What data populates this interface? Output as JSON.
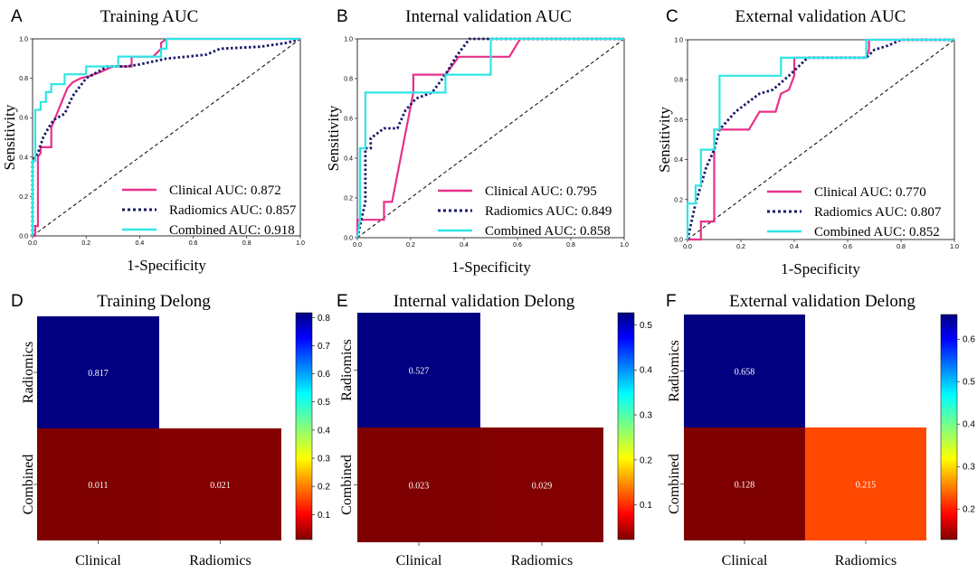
{
  "chart_data": [
    {
      "type": "line",
      "panel": "A",
      "title": "Training AUC",
      "xlabel": "1-Specificity",
      "ylabel": "Sensitivity",
      "xlim": [
        0,
        1
      ],
      "ylim": [
        0,
        1
      ],
      "ticks": [
        "0.0",
        "0.2",
        "0.4",
        "0.6",
        "0.8",
        "1.0"
      ],
      "legend_position": "lower-right",
      "series": [
        {
          "name": "Clinical AUC: 0.872",
          "color": "#e8318a",
          "dash": "solid",
          "x": [
            0,
            0.01,
            0.01,
            0.02,
            0.02,
            0.03,
            0.03,
            0.07,
            0.07,
            0.1,
            0.13,
            0.15,
            0.18,
            0.21,
            0.25,
            0.3,
            0.34,
            0.37,
            0.37,
            0.45,
            0.48,
            0.48,
            0.5,
            1.0
          ],
          "y": [
            0,
            0,
            0.05,
            0.05,
            0.4,
            0.42,
            0.45,
            0.45,
            0.55,
            0.65,
            0.75,
            0.78,
            0.8,
            0.81,
            0.83,
            0.86,
            0.86,
            0.86,
            0.91,
            0.91,
            0.95,
            0.98,
            1.0,
            1.0
          ]
        },
        {
          "name": "Radiomics AUC: 0.857",
          "color": "#1a1a6b",
          "dash": "dotted",
          "x": [
            0,
            0.0,
            0.02,
            0.04,
            0.06,
            0.08,
            0.12,
            0.15,
            0.2,
            0.28,
            0.35,
            0.4,
            0.5,
            0.58,
            0.65,
            0.7,
            0.85,
            0.95,
            1.0
          ],
          "y": [
            0,
            0.38,
            0.42,
            0.5,
            0.55,
            0.59,
            0.62,
            0.71,
            0.8,
            0.86,
            0.86,
            0.87,
            0.9,
            0.91,
            0.92,
            0.95,
            0.96,
            0.98,
            1.0
          ],
          "note": ""
        },
        {
          "name": "Combined AUC: 0.918",
          "color": "#2ee6e6",
          "dash": "solid",
          "x": [
            0,
            0,
            0.01,
            0.01,
            0.03,
            0.03,
            0.05,
            0.05,
            0.07,
            0.07,
            0.12,
            0.12,
            0.2,
            0.2,
            0.32,
            0.32,
            0.48,
            0.48,
            0.5,
            0.5,
            1.0
          ],
          "y": [
            0,
            0.38,
            0.38,
            0.64,
            0.64,
            0.68,
            0.68,
            0.73,
            0.73,
            0.77,
            0.77,
            0.82,
            0.82,
            0.86,
            0.86,
            0.91,
            0.91,
            0.95,
            0.95,
            1.0,
            1.0
          ]
        }
      ]
    },
    {
      "type": "line",
      "panel": "B",
      "title": "Internal validation AUC",
      "xlabel": "1-Specificity",
      "ylabel": "Sensitivity",
      "xlim": [
        0,
        1
      ],
      "ylim": [
        0,
        1
      ],
      "ticks": [
        "0.0",
        "0.2",
        "0.4",
        "0.6",
        "0.8",
        "1.0"
      ],
      "legend_position": "lower-right",
      "series": [
        {
          "name": "Clinical AUC: 0.795",
          "color": "#e8318a",
          "dash": "solid",
          "x": [
            0,
            0,
            0.1,
            0.1,
            0.13,
            0.21,
            0.21,
            0.33,
            0.38,
            0.38,
            0.57,
            0.61,
            0.61,
            1.0
          ],
          "y": [
            0,
            0.09,
            0.09,
            0.18,
            0.18,
            0.73,
            0.82,
            0.82,
            0.91,
            0.91,
            0.91,
            1.0,
            1.0,
            1.0
          ]
        },
        {
          "name": "Radiomics AUC: 0.849",
          "color": "#1a1a6b",
          "dash": "dotted",
          "x": [
            0,
            0.03,
            0.03,
            0.05,
            0.05,
            0.1,
            0.15,
            0.18,
            0.22,
            0.28,
            0.33,
            0.37,
            0.42,
            0.48,
            0.55,
            1.0
          ],
          "y": [
            0,
            0.18,
            0.45,
            0.45,
            0.5,
            0.55,
            0.55,
            0.64,
            0.7,
            0.73,
            0.82,
            0.91,
            1.0,
            1.0,
            1.0,
            1.0
          ]
        },
        {
          "name": "Combined AUC: 0.858",
          "color": "#2ee6e6",
          "dash": "solid",
          "x": [
            0,
            0.01,
            0.01,
            0.03,
            0.03,
            0.05,
            0.05,
            0.33,
            0.33,
            0.38,
            0.38,
            0.5,
            0.5,
            1.0
          ],
          "y": [
            0,
            0.09,
            0.45,
            0.45,
            0.73,
            0.73,
            0.73,
            0.73,
            0.82,
            0.82,
            0.82,
            0.82,
            1.0,
            1.0
          ]
        }
      ]
    },
    {
      "type": "line",
      "panel": "C",
      "title": "External validation AUC",
      "xlabel": "1-Specificity",
      "ylabel": "Sensitivity",
      "xlim": [
        0,
        1
      ],
      "ylim": [
        0,
        1
      ],
      "ticks": [
        "0.0",
        "0.2",
        "0.4",
        "0.6",
        "0.8",
        "1.0"
      ],
      "legend_position": "lower-right",
      "series": [
        {
          "name": "Clinical AUC: 0.770",
          "color": "#e8318a",
          "dash": "solid",
          "x": [
            0,
            0.05,
            0.05,
            0.1,
            0.1,
            0.12,
            0.12,
            0.23,
            0.27,
            0.33,
            0.35,
            0.38,
            0.4,
            0.4,
            0.67,
            0.68,
            0.68,
            1.0
          ],
          "y": [
            0,
            0,
            0.09,
            0.09,
            0.55,
            0.55,
            0.55,
            0.55,
            0.64,
            0.64,
            0.73,
            0.75,
            0.82,
            0.91,
            0.91,
            0.95,
            1.0,
            1.0
          ]
        },
        {
          "name": "Radiomics AUC: 0.807",
          "color": "#1a1a6b",
          "dash": "dotted",
          "x": [
            0,
            0.03,
            0.05,
            0.07,
            0.1,
            0.12,
            0.18,
            0.22,
            0.27,
            0.32,
            0.38,
            0.45,
            0.55,
            0.67,
            0.7,
            0.75,
            0.8,
            1.0
          ],
          "y": [
            0,
            0.18,
            0.27,
            0.36,
            0.45,
            0.55,
            0.64,
            0.68,
            0.73,
            0.75,
            0.82,
            0.91,
            0.91,
            0.91,
            0.95,
            0.97,
            1.0,
            1.0
          ]
        },
        {
          "name": "Combined AUC: 0.852",
          "color": "#2ee6e6",
          "dash": "solid",
          "x": [
            0,
            0,
            0.03,
            0.03,
            0.05,
            0.05,
            0.1,
            0.1,
            0.12,
            0.12,
            0.35,
            0.35,
            0.67,
            0.67,
            1.0
          ],
          "y": [
            0,
            0.18,
            0.18,
            0.27,
            0.27,
            0.45,
            0.45,
            0.55,
            0.55,
            0.82,
            0.82,
            0.91,
            0.91,
            1.0,
            1.0
          ]
        }
      ]
    },
    {
      "type": "heatmap",
      "panel": "D",
      "title": "Training Delong",
      "row_labels": [
        "Radiomics",
        "Combined"
      ],
      "col_labels": [
        "Clinical",
        "Radiomics"
      ],
      "cells": [
        {
          "row": 0,
          "col": 0,
          "value": 0.817,
          "label": "0.817",
          "color": "#000080"
        },
        {
          "row": 1,
          "col": 0,
          "value": 0.011,
          "label": "0.011",
          "color": "#7f0000"
        },
        {
          "row": 1,
          "col": 1,
          "value": 0.021,
          "label": "0.021",
          "color": "#850000"
        }
      ],
      "colormap": "jet",
      "colorbar_range": [
        0.011,
        0.817
      ],
      "colorbar_ticks": [
        "0.1",
        "0.2",
        "0.3",
        "0.4",
        "0.5",
        "0.6",
        "0.7",
        "0.8"
      ]
    },
    {
      "type": "heatmap",
      "panel": "E",
      "title": "Internal validation Delong",
      "row_labels": [
        "Radiomics",
        "Combined"
      ],
      "col_labels": [
        "Clinical",
        "Radiomics"
      ],
      "cells": [
        {
          "row": 0,
          "col": 0,
          "value": 0.527,
          "label": "0.527",
          "color": "#000080"
        },
        {
          "row": 1,
          "col": 0,
          "value": 0.023,
          "label": "0.023",
          "color": "#7f0000"
        },
        {
          "row": 1,
          "col": 1,
          "value": 0.029,
          "label": "0.029",
          "color": "#820000"
        }
      ],
      "colormap": "jet",
      "colorbar_range": [
        0.023,
        0.527
      ],
      "colorbar_ticks": [
        "0.1",
        "0.2",
        "0.3",
        "0.4",
        "0.5"
      ]
    },
    {
      "type": "heatmap",
      "panel": "F",
      "title": "External validation Delong",
      "row_labels": [
        "Radiomics",
        "Combined"
      ],
      "col_labels": [
        "Clinical",
        "Radiomics"
      ],
      "cells": [
        {
          "row": 0,
          "col": 0,
          "value": 0.658,
          "label": "0.658",
          "color": "#000080"
        },
        {
          "row": 1,
          "col": 0,
          "value": 0.128,
          "label": "0.128",
          "color": "#7f0000"
        },
        {
          "row": 1,
          "col": 1,
          "value": 0.215,
          "label": "0.215",
          "color": "#ff4800"
        }
      ],
      "colormap": "jet",
      "colorbar_range": [
        0.128,
        0.658
      ],
      "colorbar_ticks": [
        "0.2",
        "0.3",
        "0.4",
        "0.5",
        "0.6"
      ]
    }
  ]
}
